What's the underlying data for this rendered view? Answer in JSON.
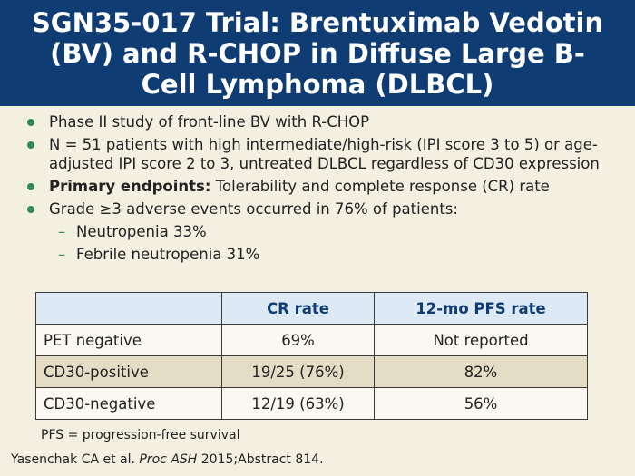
{
  "header": {
    "title": "SGN35-017 Trial: Brentuximab Vedotin (BV) and R-CHOP in Diffuse Large B-Cell Lymphoma (DLBCL)"
  },
  "bullets": [
    {
      "text": "Phase II study of front-line BV with R-CHOP"
    },
    {
      "text": "N = 51 patients with high intermediate/high-risk (IPI score 3 to 5) or age-adjusted IPI score 2 to 3, untreated DLBCL regardless of CD30 expression"
    },
    {
      "bold": "Primary endpoints:",
      "text": " Tolerability and complete response (CR) rate"
    },
    {
      "text": "Grade ≥3 adverse events occurred in 76% of patients:"
    }
  ],
  "subbullets": [
    {
      "text": "Neutropenia 33%"
    },
    {
      "text": "Febrile neutropenia 31%"
    }
  ],
  "table": {
    "headers": [
      "",
      "CR rate",
      "12-mo PFS rate"
    ],
    "rows": [
      [
        "PET negative",
        "69%",
        "Not reported"
      ],
      [
        "CD30-positive",
        "19/25 (76%)",
        "82%"
      ],
      [
        "CD30-negative",
        "12/19 (63%)",
        "56%"
      ]
    ]
  },
  "footnote": "PFS = progression-free survival",
  "citation": {
    "pre": "Yasenchak CA et al. ",
    "journal": "Proc ASH",
    "post": " 2015;Abstract 814."
  },
  "colors": {
    "title_bg": "#0f3d73",
    "background": "#f3efe1",
    "bullet": "#2e8b57",
    "table_header_bg": "#dde9f4",
    "table_alt_row": "#e4dcc4"
  }
}
